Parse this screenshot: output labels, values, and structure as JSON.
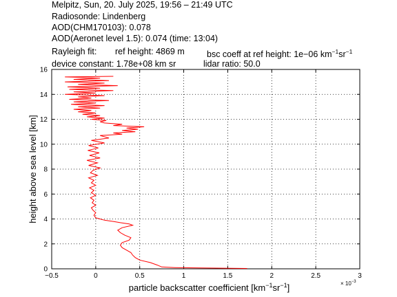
{
  "header": {
    "line1": "Melpitz, Sun, 20. July 2025, 19:56 – 21:49 UTC",
    "line2": "Radiosonde: Lindenberg",
    "line3": "AOD(CHM170103): 0.078",
    "line4": "AOD(Aeronet level 1.5): 0.074   (time: 13:04)",
    "line5_a": "Rayleigh fit:",
    "line5_b": "ref height: 4869 m",
    "line5_c": "bsc coeff at ref height: 1e−06 km",
    "line5_c_sup1": "−1",
    "line5_c_mid": "sr",
    "line5_c_sup2": "−1",
    "line6_a": "device constant: 1.78e+08 km sr",
    "line6_b": "lidar ratio: 50.0"
  },
  "chart_data": {
    "type": "line",
    "xlabel": "particle backscatter coefficient [km⁻¹sr⁻¹]",
    "xlabel_main": "particle backscatter coefficient [km",
    "xlabel_sup1": "−1",
    "xlabel_mid": "sr",
    "xlabel_sup2": "−1",
    "xlabel_end": "]",
    "x_multiplier": "× 10",
    "x_multiplier_exp": "−3",
    "ylabel": "height above sea level [km]",
    "xlim": [
      -0.5,
      3
    ],
    "ylim": [
      0,
      16
    ],
    "xticks": [
      "−0.5",
      "0",
      "0.5",
      "1",
      "1.5",
      "2",
      "2.5",
      "3"
    ],
    "xtick_values": [
      -0.5,
      0,
      0.5,
      1,
      1.5,
      2,
      2.5,
      3
    ],
    "yticks": [
      "0",
      "2",
      "4",
      "6",
      "8",
      "10",
      "12",
      "14",
      "16"
    ],
    "ytick_values": [
      0,
      2,
      4,
      6,
      8,
      10,
      12,
      14,
      16
    ],
    "grid": true,
    "series": [
      {
        "color": "#ff0000",
        "points": [
          [
            1.72,
            0.03
          ],
          [
            1.2,
            0.07
          ],
          [
            0.9,
            0.1
          ],
          [
            0.75,
            0.15
          ],
          [
            0.7,
            0.3
          ],
          [
            0.62,
            0.5
          ],
          [
            0.5,
            0.7
          ],
          [
            0.45,
            0.9
          ],
          [
            0.42,
            1.1
          ],
          [
            0.4,
            1.3
          ],
          [
            0.35,
            1.5
          ],
          [
            0.3,
            1.7
          ],
          [
            0.28,
            1.9
          ],
          [
            0.3,
            2.1
          ],
          [
            0.38,
            2.3
          ],
          [
            0.4,
            2.5
          ],
          [
            0.33,
            2.7
          ],
          [
            0.28,
            2.9
          ],
          [
            0.25,
            3.1
          ],
          [
            0.3,
            3.3
          ],
          [
            0.42,
            3.5
          ],
          [
            0.38,
            3.6
          ],
          [
            0.28,
            3.7
          ],
          [
            0.2,
            3.8
          ],
          [
            0.1,
            3.9
          ],
          [
            0.05,
            4.0
          ],
          [
            0.0,
            4.1
          ],
          [
            -0.02,
            4.3
          ],
          [
            0.0,
            4.5
          ],
          [
            -0.03,
            4.7
          ],
          [
            -0.05,
            4.9
          ],
          [
            0.0,
            5.1
          ],
          [
            -0.04,
            5.3
          ],
          [
            -0.02,
            5.5
          ],
          [
            -0.06,
            5.7
          ],
          [
            0.0,
            5.9
          ],
          [
            -0.05,
            6.1
          ],
          [
            -0.02,
            6.3
          ],
          [
            -0.07,
            6.5
          ],
          [
            0.0,
            6.7
          ],
          [
            -0.05,
            6.9
          ],
          [
            -0.02,
            7.1
          ],
          [
            -0.08,
            7.3
          ],
          [
            0.02,
            7.5
          ],
          [
            -0.06,
            7.7
          ],
          [
            -0.03,
            7.9
          ],
          [
            0.05,
            8.1
          ],
          [
            -0.08,
            8.3
          ],
          [
            0.02,
            8.5
          ],
          [
            -0.1,
            8.7
          ],
          [
            0.05,
            8.9
          ],
          [
            -0.07,
            9.1
          ],
          [
            0.04,
            9.3
          ],
          [
            -0.09,
            9.5
          ],
          [
            0.03,
            9.7
          ],
          [
            -0.08,
            9.9
          ],
          [
            0.1,
            10.1
          ],
          [
            -0.05,
            10.3
          ],
          [
            0.15,
            10.5
          ],
          [
            0.05,
            10.7
          ],
          [
            0.3,
            10.8
          ],
          [
            0.2,
            10.9
          ],
          [
            0.45,
            11.0
          ],
          [
            0.3,
            11.1
          ],
          [
            0.48,
            11.2
          ],
          [
            0.35,
            11.3
          ],
          [
            0.55,
            11.4
          ],
          [
            0.2,
            11.5
          ],
          [
            0.3,
            11.6
          ],
          [
            0.1,
            11.7
          ],
          [
            0.05,
            11.8
          ],
          [
            0.12,
            11.9
          ],
          [
            -0.05,
            12.0
          ],
          [
            0.1,
            12.1
          ],
          [
            -0.1,
            12.2
          ],
          [
            0.05,
            12.3
          ],
          [
            -0.15,
            12.4
          ],
          [
            0.0,
            12.5
          ],
          [
            -0.2,
            12.6
          ],
          [
            -0.05,
            12.7
          ],
          [
            -0.25,
            12.8
          ],
          [
            0.05,
            12.9
          ],
          [
            -0.2,
            13.0
          ],
          [
            0.1,
            13.1
          ],
          [
            -0.28,
            13.2
          ],
          [
            0.0,
            13.3
          ],
          [
            -0.25,
            13.4
          ],
          [
            0.15,
            13.5
          ],
          [
            -0.3,
            13.6
          ],
          [
            -0.05,
            13.7
          ],
          [
            -0.2,
            13.8
          ],
          [
            0.1,
            13.9
          ],
          [
            -0.35,
            14.0
          ],
          [
            0.0,
            14.1
          ],
          [
            -0.25,
            14.2
          ],
          [
            0.2,
            14.3
          ],
          [
            -0.3,
            14.4
          ],
          [
            0.05,
            14.5
          ],
          [
            -0.32,
            14.6
          ],
          [
            0.25,
            14.7
          ],
          [
            -0.2,
            14.8
          ],
          [
            0.1,
            14.9
          ],
          [
            -0.35,
            15.0
          ],
          [
            0.15,
            15.1
          ],
          [
            -0.25,
            15.2
          ],
          [
            0.05,
            15.3
          ],
          [
            -0.35,
            15.4
          ],
          [
            0.2,
            15.45
          ]
        ]
      }
    ]
  }
}
